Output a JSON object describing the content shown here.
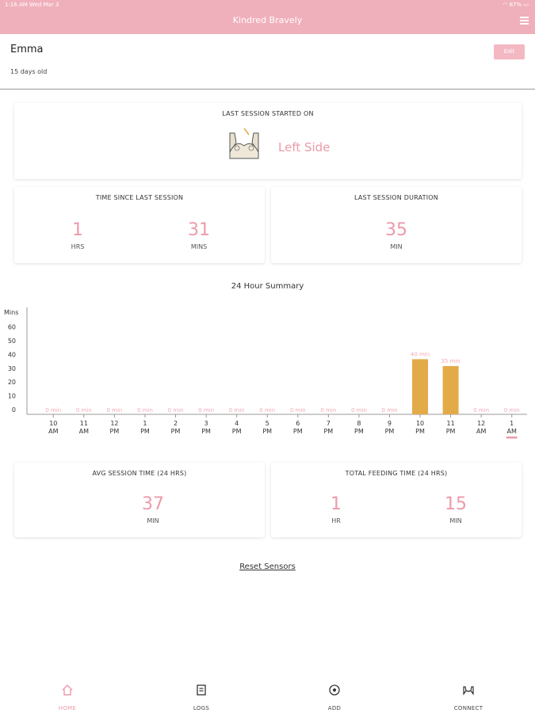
{
  "status_bar": {
    "time_date": "1:16 AM   Wed Mar 3",
    "battery": "87%"
  },
  "nav": {
    "title": "Kindred Bravely"
  },
  "profile": {
    "name": "Emma",
    "age": "15 days old",
    "edit_label": "Edit"
  },
  "last_session": {
    "title": "LAST SESSION STARTED ON",
    "side": "Left Side"
  },
  "time_since": {
    "title": "TIME SINCE LAST SESSION",
    "hours": "1",
    "hours_unit": "HRS",
    "mins": "31",
    "mins_unit": "MINS"
  },
  "last_duration": {
    "title": "LAST SESSION DURATION",
    "value": "35",
    "unit": "MIN"
  },
  "summary": {
    "title": "24 Hour Summary"
  },
  "chart_data": {
    "type": "bar",
    "ylabel": "Mins",
    "yticks": [
      "60",
      "50",
      "40",
      "30",
      "20",
      "10",
      "0"
    ],
    "ylim": [
      0,
      70
    ],
    "categories": [
      [
        "10",
        "AM"
      ],
      [
        "11",
        "AM"
      ],
      [
        "12",
        "PM"
      ],
      [
        "1",
        "PM"
      ],
      [
        "2",
        "PM"
      ],
      [
        "3",
        "PM"
      ],
      [
        "4",
        "PM"
      ],
      [
        "5",
        "PM"
      ],
      [
        "6",
        "PM"
      ],
      [
        "7",
        "PM"
      ],
      [
        "8",
        "PM"
      ],
      [
        "9",
        "PM"
      ],
      [
        "10",
        "PM"
      ],
      [
        "11",
        "PM"
      ],
      [
        "12",
        "AM"
      ],
      [
        "1",
        "AM"
      ]
    ],
    "values": [
      0,
      0,
      0,
      0,
      0,
      0,
      0,
      0,
      0,
      0,
      0,
      0,
      40,
      35,
      0,
      0
    ],
    "labels": [
      "0 min",
      "0 min",
      "0 min",
      "0 min",
      "0 min",
      "0 min",
      "0 min",
      "0 min",
      "0 min",
      "0 min",
      "0 min",
      "0 min",
      "40 min",
      "35 min",
      "0 min",
      "0 min"
    ],
    "bar_color": "#e3aa48",
    "label_color": "#f0a9b5",
    "current_index": 15,
    "current_color": "#ec9aa9"
  },
  "avg_session": {
    "title": "AVG SESSION TIME (24 HRS)",
    "value": "37",
    "unit": "MIN"
  },
  "total_feeding": {
    "title": "TOTAL FEEDING TIME (24 HRS)",
    "hours": "1",
    "hours_unit": "HR",
    "mins": "15",
    "mins_unit": "MIN"
  },
  "reset": {
    "label": "Reset Sensors"
  },
  "tabs": [
    {
      "label": "HOME",
      "icon": "home-icon",
      "active": true
    },
    {
      "label": "LOGS",
      "icon": "logs-icon",
      "active": false
    },
    {
      "label": "ADD",
      "icon": "add-icon",
      "active": false
    },
    {
      "label": "CONNECT",
      "icon": "connect-icon",
      "active": false
    }
  ],
  "colors": {
    "brand_pink": "#f0b0bb",
    "accent_pink": "#ec9aa9"
  }
}
